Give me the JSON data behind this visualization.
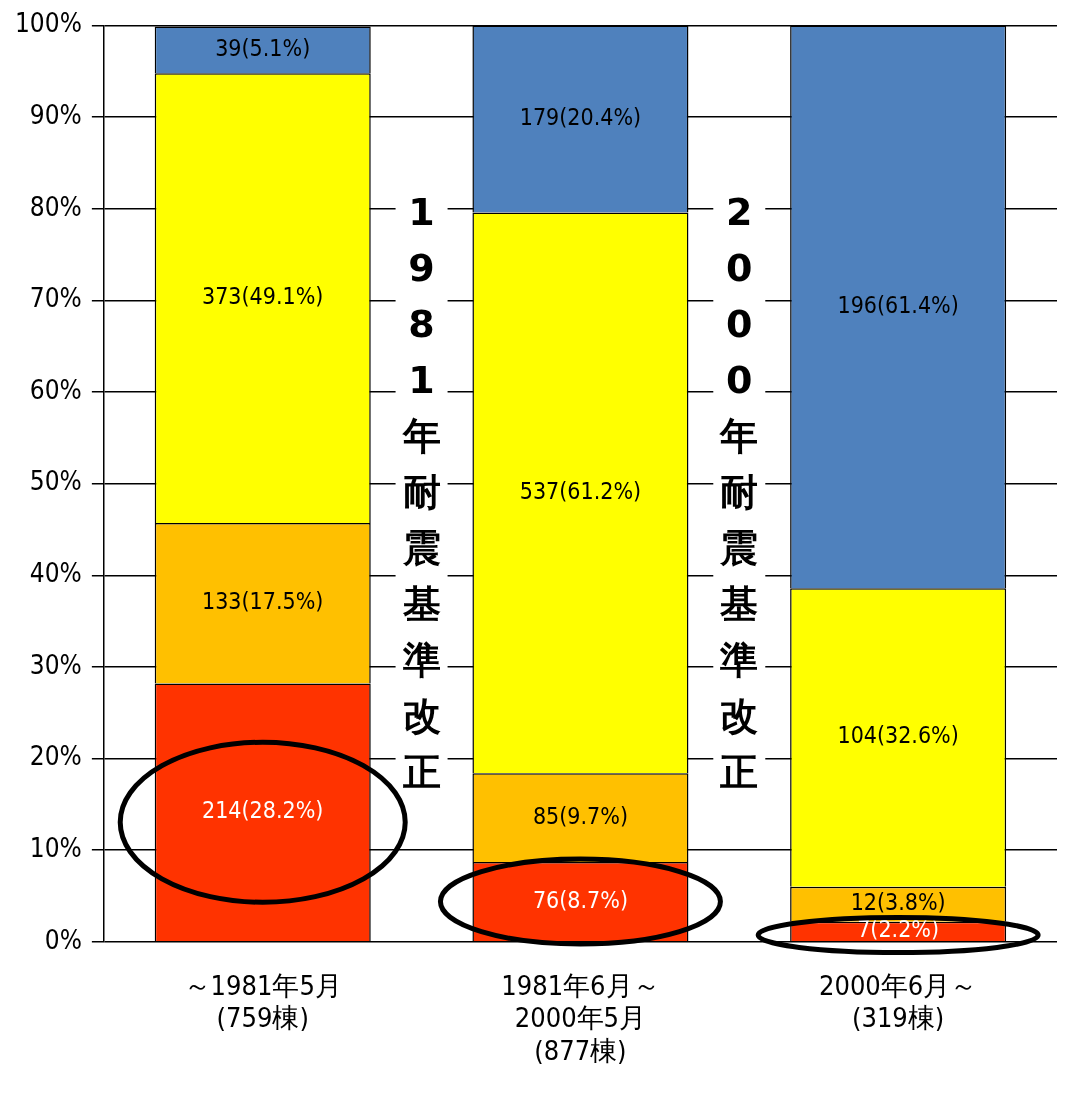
{
  "chart_data": {
    "type": "bar",
    "stacked": true,
    "categories": [
      "～1981年5月\n(759棟)",
      "1981年6月～\n2000年5月\n(877棟)",
      "2000年6月～\n(319棟)"
    ],
    "series": [
      {
        "color": "#ff3300",
        "values": [
          28.2,
          8.7,
          2.2
        ],
        "value_labels": [
          "214(28.2%)",
          "76(8.7%)",
          "7(2.2%)"
        ]
      },
      {
        "color": "#ffc000",
        "values": [
          17.5,
          9.7,
          3.8
        ],
        "value_labels": [
          "133(17.5%)",
          "85(9.7%)",
          "12(3.8%)"
        ]
      },
      {
        "color": "#ffff00",
        "values": [
          49.1,
          61.2,
          32.6
        ],
        "value_labels": [
          "373(49.1%)",
          "537(61.2%)",
          "104(32.6%)"
        ]
      },
      {
        "color": "#4f81bd",
        "values": [
          5.1,
          20.4,
          61.4
        ],
        "value_labels": [
          "39(5.1%)",
          "179(20.4%)",
          "196(61.4%)"
        ]
      }
    ],
    "ylim": [
      0,
      100
    ],
    "yticks": [
      {
        "value": 0,
        "label": "0%"
      },
      {
        "value": 10,
        "label": "10%"
      },
      {
        "value": 20,
        "label": "20%"
      },
      {
        "value": 30,
        "label": "30%"
      },
      {
        "value": 40,
        "label": "40%"
      },
      {
        "value": 50,
        "label": "50%"
      },
      {
        "value": 60,
        "label": "60%"
      },
      {
        "value": 70,
        "label": "70%"
      },
      {
        "value": 80,
        "label": "80%"
      },
      {
        "value": 90,
        "label": "90%"
      },
      {
        "value": 100,
        "label": "100%"
      }
    ],
    "grid": "y",
    "legend": false,
    "annotations": [
      "1981年耐震基準改正",
      "2000年耐震基準改正"
    ]
  }
}
